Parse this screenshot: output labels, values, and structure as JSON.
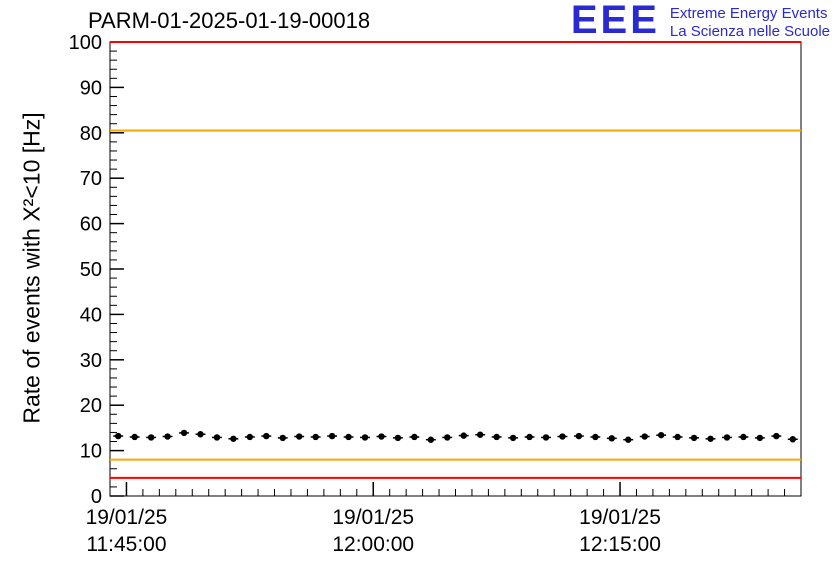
{
  "header": {
    "title": "PARM-01-2025-01-19-00018"
  },
  "logo": {
    "acronym": "EEE",
    "line1": "Extreme Energy Events",
    "line2": "La Scienza nelle Scuole",
    "color": "#2a2ad2"
  },
  "chart_data": {
    "type": "scatter",
    "title": "PARM-01-2025-01-19-00018",
    "xlabel": "",
    "ylabel": "Rate of events with X²<10 [Hz]",
    "ylim": [
      0,
      100
    ],
    "y_major_ticks": [
      0,
      10,
      20,
      30,
      40,
      50,
      60,
      70,
      80,
      90,
      100
    ],
    "y_minor_step": 2,
    "xlim_minutes": [
      0,
      42
    ],
    "x_axis_labels": [
      {
        "pos_min": 1,
        "line1": "19/01/25",
        "line2": "11:45:00"
      },
      {
        "pos_min": 16,
        "line1": "19/01/25",
        "line2": "12:00:00"
      },
      {
        "pos_min": 31,
        "line1": "19/01/25",
        "line2": "12:15:00"
      }
    ],
    "x_minor_step_minutes": 1,
    "grid": false,
    "legend": null,
    "marker_color": "#000000",
    "x_half_width_minutes": 0.3,
    "y_error": 0.45,
    "series": [
      {
        "name": "event-rate",
        "x_minutes": [
          0.5,
          1.5,
          2.5,
          3.5,
          4.5,
          5.5,
          6.5,
          7.5,
          8.5,
          9.5,
          10.5,
          11.5,
          12.5,
          13.5,
          14.5,
          15.5,
          16.5,
          17.5,
          18.5,
          19.5,
          20.5,
          21.5,
          22.5,
          23.5,
          24.5,
          25.5,
          26.5,
          27.5,
          28.5,
          29.5,
          30.5,
          31.5,
          32.5,
          33.5,
          34.5,
          35.5,
          36.5,
          37.5,
          38.5,
          39.5,
          40.5,
          41.5
        ],
        "y_hz": [
          13.2,
          13.0,
          12.9,
          13.1,
          13.9,
          13.6,
          12.9,
          12.6,
          13.0,
          13.2,
          12.8,
          13.1,
          13.0,
          13.2,
          13.0,
          12.9,
          13.1,
          12.8,
          13.0,
          12.4,
          12.9,
          13.3,
          13.5,
          13.0,
          12.8,
          13.0,
          12.9,
          13.1,
          13.2,
          13.0,
          12.7,
          12.4,
          13.1,
          13.4,
          13.0,
          12.8,
          12.6,
          12.9,
          13.0,
          12.8,
          13.2,
          12.5
        ]
      }
    ],
    "reference_lines": [
      {
        "y": 100,
        "color": "#ff0000",
        "name": "upper-alarm-line"
      },
      {
        "y": 80.5,
        "color": "#ffa500",
        "name": "upper-warning-line"
      },
      {
        "y": 8,
        "color": "#ffa500",
        "name": "lower-warning-line"
      },
      {
        "y": 4,
        "color": "#ff0000",
        "name": "lower-alarm-line"
      }
    ]
  }
}
